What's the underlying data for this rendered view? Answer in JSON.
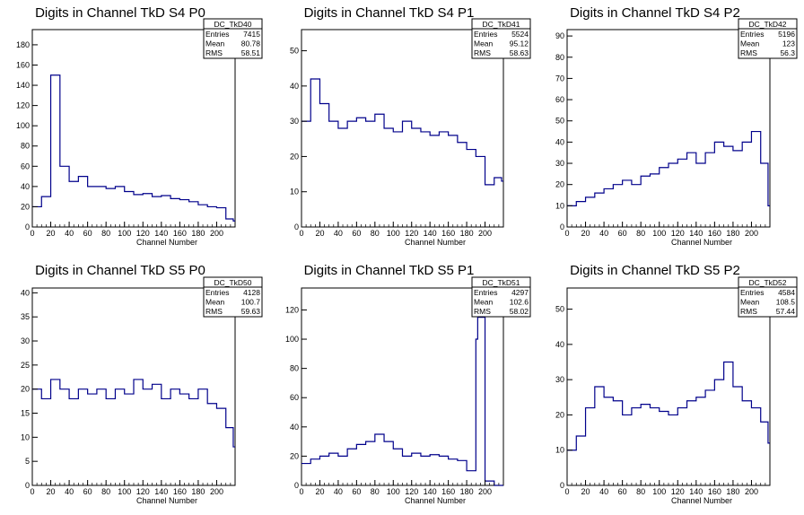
{
  "chart_data": [
    {
      "type": "bar",
      "title": "Digits in Channel TkD S4 P0",
      "xlabel": "Channel Number",
      "ylabel": "",
      "xlim": [
        0,
        220
      ],
      "ylim": [
        0,
        195
      ],
      "xticks": [
        0,
        20,
        40,
        60,
        80,
        100,
        120,
        140,
        160,
        180,
        200
      ],
      "yticks": [
        0,
        20,
        40,
        60,
        80,
        100,
        120,
        140,
        160,
        180
      ],
      "line_color": "#00008b",
      "stats": {
        "name": "DC_TkD40",
        "entries": "7415",
        "mean": "80.78",
        "rms": "58.51"
      },
      "x": [
        0,
        10,
        20,
        30,
        40,
        50,
        60,
        70,
        80,
        90,
        100,
        110,
        120,
        130,
        140,
        150,
        160,
        170,
        180,
        190,
        200,
        210,
        218
      ],
      "values": [
        20,
        30,
        150,
        60,
        45,
        50,
        40,
        40,
        38,
        40,
        35,
        32,
        33,
        30,
        31,
        28,
        27,
        25,
        22,
        20,
        19,
        8,
        6
      ]
    },
    {
      "type": "bar",
      "title": "Digits in Channel TkD S4 P1",
      "xlabel": "Channel Number",
      "ylabel": "",
      "xlim": [
        0,
        220
      ],
      "ylim": [
        0,
        56
      ],
      "xticks": [
        0,
        20,
        40,
        60,
        80,
        100,
        120,
        140,
        160,
        180,
        200
      ],
      "yticks": [
        0,
        10,
        20,
        30,
        40,
        50
      ],
      "line_color": "#00008b",
      "stats": {
        "name": "DC_TkD41",
        "entries": "5524",
        "mean": "95.12",
        "rms": "58.63"
      },
      "x": [
        0,
        10,
        20,
        30,
        40,
        50,
        60,
        70,
        80,
        90,
        100,
        110,
        120,
        130,
        140,
        150,
        160,
        170,
        180,
        190,
        200,
        210,
        218
      ],
      "values": [
        30,
        42,
        35,
        30,
        28,
        30,
        31,
        30,
        32,
        28,
        27,
        30,
        28,
        27,
        26,
        27,
        26,
        24,
        22,
        20,
        12,
        14,
        13
      ]
    },
    {
      "type": "bar",
      "title": "Digits in Channel TkD S4 P2",
      "xlabel": "Channel Number",
      "ylabel": "",
      "xlim": [
        0,
        220
      ],
      "ylim": [
        0,
        93
      ],
      "xticks": [
        0,
        20,
        40,
        60,
        80,
        100,
        120,
        140,
        160,
        180,
        200
      ],
      "yticks": [
        0,
        10,
        20,
        30,
        40,
        50,
        60,
        70,
        80,
        90
      ],
      "line_color": "#00008b",
      "stats": {
        "name": "DC_TkD42",
        "entries": "5196",
        "mean": "123",
        "rms": "56.3"
      },
      "x": [
        0,
        10,
        20,
        30,
        40,
        50,
        60,
        70,
        80,
        90,
        100,
        110,
        120,
        130,
        140,
        150,
        160,
        170,
        180,
        190,
        200,
        210,
        218
      ],
      "values": [
        10,
        12,
        14,
        16,
        18,
        20,
        22,
        20,
        24,
        25,
        28,
        30,
        32,
        35,
        30,
        35,
        40,
        38,
        36,
        40,
        45,
        30,
        10
      ]
    },
    {
      "type": "bar",
      "title": "Digits in Channel TkD S5 P0",
      "xlabel": "Channel Number",
      "ylabel": "",
      "xlim": [
        0,
        220
      ],
      "ylim": [
        0,
        41
      ],
      "xticks": [
        0,
        20,
        40,
        60,
        80,
        100,
        120,
        140,
        160,
        180,
        200
      ],
      "yticks": [
        0,
        5,
        10,
        15,
        20,
        25,
        30,
        35,
        40
      ],
      "line_color": "#00008b",
      "stats": {
        "name": "DC_TkD50",
        "entries": "4128",
        "mean": "100.7",
        "rms": "59.63"
      },
      "x": [
        0,
        10,
        20,
        30,
        40,
        50,
        60,
        70,
        80,
        90,
        100,
        110,
        120,
        130,
        140,
        150,
        160,
        170,
        180,
        190,
        200,
        210,
        218
      ],
      "values": [
        20,
        18,
        22,
        20,
        18,
        20,
        19,
        20,
        18,
        20,
        19,
        22,
        20,
        21,
        18,
        20,
        19,
        18,
        20,
        17,
        16,
        12,
        8
      ]
    },
    {
      "type": "bar",
      "title": "Digits in Channel TkD S5 P1",
      "xlabel": "Channel Number",
      "ylabel": "",
      "xlim": [
        0,
        220
      ],
      "ylim": [
        0,
        135
      ],
      "xticks": [
        0,
        20,
        40,
        60,
        80,
        100,
        120,
        140,
        160,
        180,
        200
      ],
      "yticks": [
        0,
        20,
        40,
        60,
        80,
        100,
        120
      ],
      "line_color": "#00008b",
      "stats": {
        "name": "DC_TkD51",
        "entries": "4297",
        "mean": "102.6",
        "rms": "58.02"
      },
      "x": [
        0,
        10,
        20,
        30,
        40,
        50,
        60,
        70,
        80,
        90,
        100,
        110,
        120,
        130,
        140,
        150,
        160,
        170,
        180,
        190,
        192,
        200,
        210,
        218
      ],
      "values": [
        15,
        18,
        20,
        22,
        20,
        25,
        28,
        30,
        35,
        30,
        25,
        20,
        22,
        20,
        21,
        20,
        18,
        17,
        10,
        100,
        115,
        3,
        0,
        0
      ]
    },
    {
      "type": "bar",
      "title": "Digits in Channel TkD S5 P2",
      "xlabel": "Channel Number",
      "ylabel": "",
      "xlim": [
        0,
        220
      ],
      "ylim": [
        0,
        56
      ],
      "xticks": [
        0,
        20,
        40,
        60,
        80,
        100,
        120,
        140,
        160,
        180,
        200
      ],
      "yticks": [
        0,
        10,
        20,
        30,
        40,
        50
      ],
      "line_color": "#00008b",
      "stats": {
        "name": "DC_TkD52",
        "entries": "4584",
        "mean": "108.5",
        "rms": "57.44"
      },
      "x": [
        0,
        10,
        20,
        30,
        40,
        50,
        60,
        70,
        80,
        90,
        100,
        110,
        120,
        130,
        140,
        150,
        160,
        170,
        180,
        190,
        200,
        210,
        218
      ],
      "values": [
        10,
        14,
        22,
        28,
        25,
        24,
        20,
        22,
        23,
        22,
        21,
        20,
        22,
        24,
        25,
        27,
        30,
        35,
        28,
        24,
        22,
        18,
        12
      ]
    }
  ],
  "stat_labels": {
    "entries": "Entries",
    "mean": "Mean",
    "rms": "RMS"
  }
}
